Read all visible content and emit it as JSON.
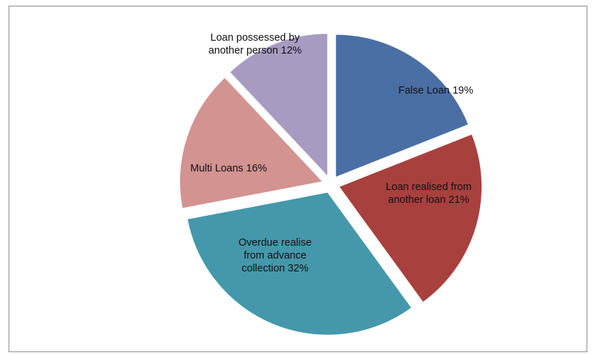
{
  "chart_data": {
    "type": "pie",
    "start_angle_deg": 0,
    "direction": "clockwise",
    "slices": [
      {
        "label": "False Loan",
        "percent_label": "19%",
        "value": 19,
        "color": "#4a6fa5",
        "label_lines": [
          "False Loan 19%"
        ]
      },
      {
        "label": "Loan realised from another loan",
        "percent_label": "21%",
        "value": 21,
        "color": "#a8403e",
        "label_lines": [
          "Loan realised from",
          "another loan 21%"
        ]
      },
      {
        "label": "Overdue realise from advance collection",
        "percent_label": "32%",
        "value": 32,
        "color": "#4598ab",
        "label_lines": [
          "Overdue realise",
          "from advance",
          "collection 32%"
        ]
      },
      {
        "label": "Multi Loans",
        "percent_label": "16%",
        "value": 16,
        "color": "#d29391",
        "label_lines": [
          "Multi Loans 16%"
        ]
      },
      {
        "label": "Loan possessed by another person",
        "percent_label": "12%",
        "value": 12,
        "color": "#a89bc2",
        "label_lines": [
          "Loan possessed by",
          "another person 12%"
        ]
      }
    ]
  }
}
